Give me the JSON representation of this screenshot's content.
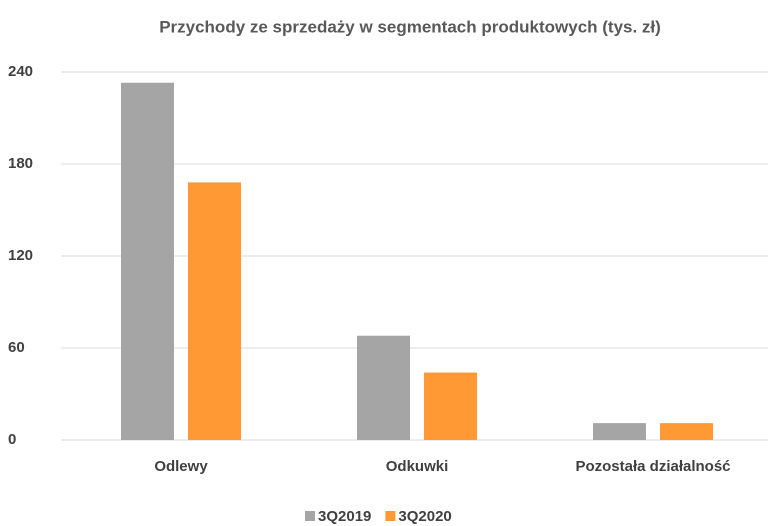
{
  "chart_data": {
    "type": "bar",
    "title": "Przychody ze sprzedaży w segmentach produktowych (tys. zł)",
    "categories": [
      "Odlewy",
      "Odkuwki",
      "Pozostała działalność"
    ],
    "series": [
      {
        "name": "3Q2019",
        "color": "#a5a5a5",
        "values": [
          233,
          68,
          11
        ]
      },
      {
        "name": "3Q2020",
        "color": "#ff9933",
        "values": [
          168,
          44,
          11
        ]
      }
    ],
    "ylim": [
      0,
      240
    ],
    "yticks": [
      0,
      60,
      120,
      180,
      240
    ],
    "grid": true,
    "legend": "bottom"
  }
}
